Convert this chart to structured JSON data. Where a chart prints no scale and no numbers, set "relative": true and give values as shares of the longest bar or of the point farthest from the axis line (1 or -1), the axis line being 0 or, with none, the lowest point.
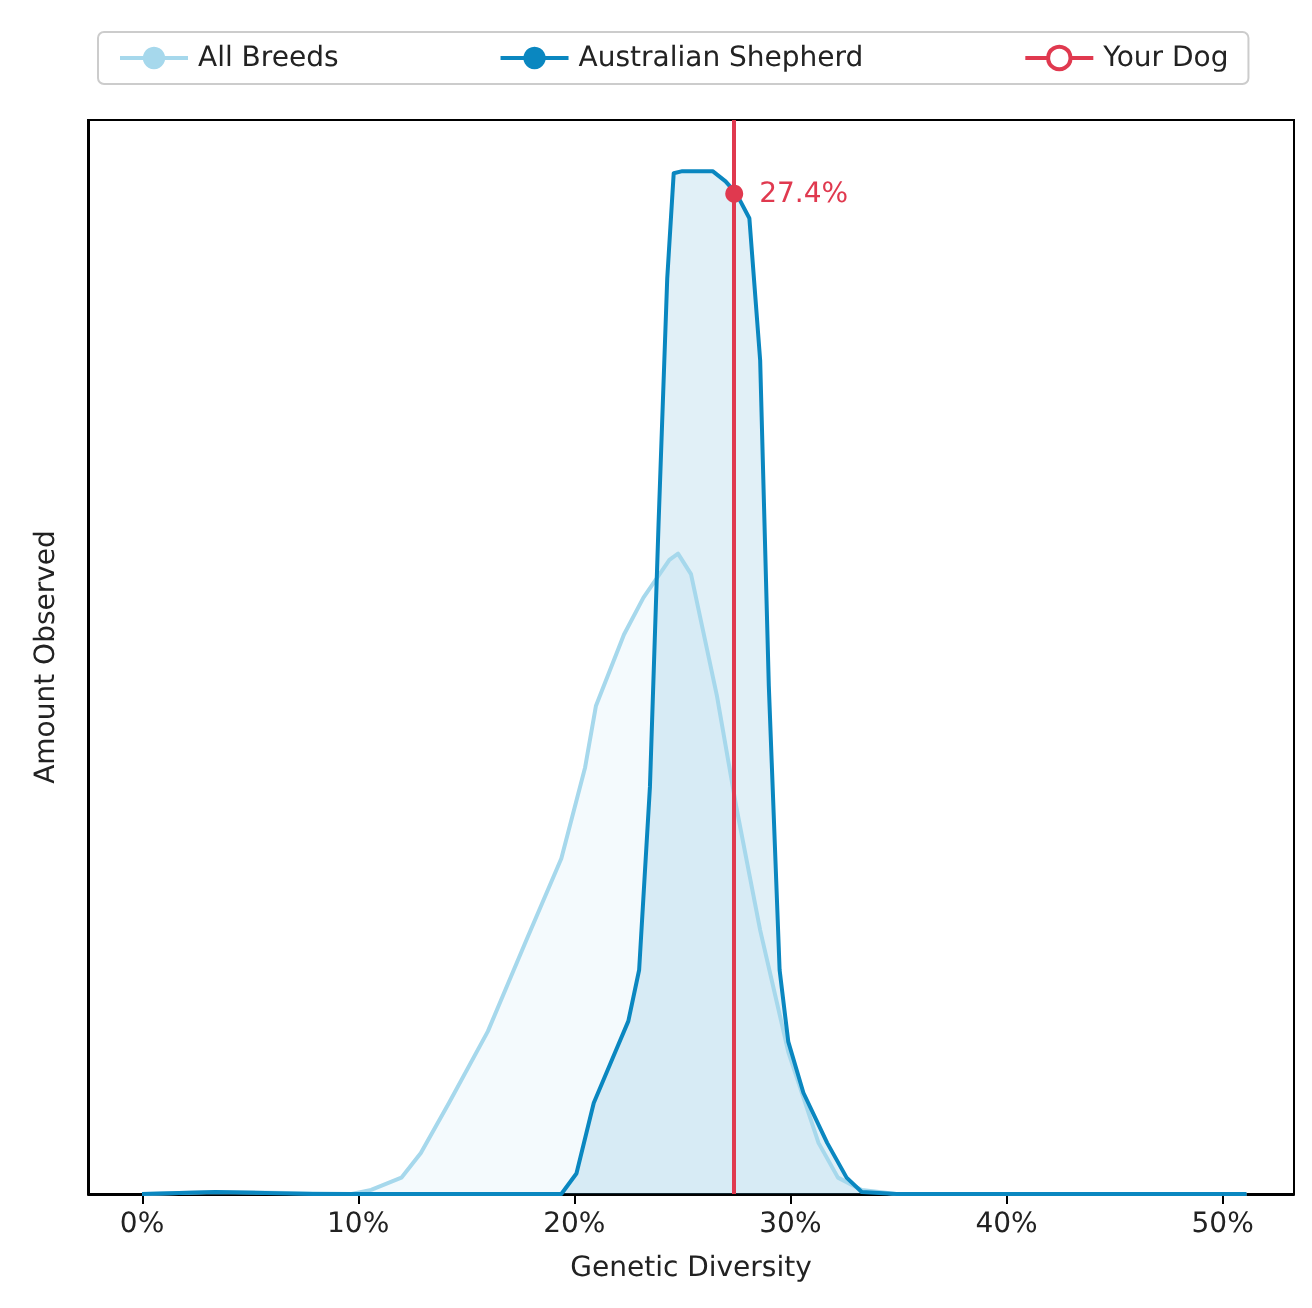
{
  "chart_data": {
    "type": "area",
    "relative": true,
    "xlabel": "Genetic Diversity",
    "ylabel": "Amount Observed",
    "xlim": [
      -2.5,
      53.3
    ],
    "xticks": [
      {
        "value": 0,
        "label": "0%"
      },
      {
        "value": 10,
        "label": "10%"
      },
      {
        "value": 20,
        "label": "20%"
      },
      {
        "value": 30,
        "label": "30%"
      },
      {
        "value": 40,
        "label": "40%"
      },
      {
        "value": 50,
        "label": "50%"
      }
    ],
    "grid": false,
    "legend": "top",
    "series": [
      {
        "name": "All Breeds",
        "color": "#a6d8ec",
        "x": [
          0,
          3.4,
          9.7,
          10.6,
          12,
          12.9,
          14.2,
          16,
          17.8,
          19.4,
          20.5,
          21,
          22.3,
          23.2,
          24.4,
          24.8,
          25.4,
          26.6,
          27.5,
          28.6,
          29.9,
          31.3,
          32.2,
          33.3,
          34.9,
          50,
          51.1
        ],
        "values": [
          0,
          0.002,
          0,
          0.004,
          0.016,
          0.04,
          0.089,
          0.159,
          0.249,
          0.328,
          0.417,
          0.477,
          0.547,
          0.583,
          0.62,
          0.626,
          0.606,
          0.487,
          0.378,
          0.258,
          0.139,
          0.05,
          0.016,
          0.004,
          0,
          0,
          0
        ]
      },
      {
        "name": "Australian Shepherd",
        "color": "#0a87c0",
        "x": [
          0,
          3.4,
          7.9,
          19.4,
          20.1,
          20.9,
          21.9,
          22.5,
          23,
          23.5,
          23.9,
          24.3,
          24.6,
          25,
          26.4,
          27,
          27.5,
          28.1,
          28.6,
          29,
          29.5,
          29.9,
          30.6,
          31.7,
          32.6,
          33.3,
          34.9,
          51.1
        ],
        "values": [
          0,
          0.002,
          0,
          0,
          0.02,
          0.089,
          0.139,
          0.169,
          0.219,
          0.398,
          0.656,
          0.895,
          0.998,
          1,
          1,
          0.99,
          0.978,
          0.954,
          0.815,
          0.497,
          0.219,
          0.149,
          0.099,
          0.05,
          0.016,
          0.002,
          0,
          0
        ]
      }
    ],
    "ref_lines": [
      {
        "axis": "x",
        "value": 27.4,
        "label": "Your Dog",
        "color": "#e0394f"
      }
    ],
    "annotations": [
      {
        "text": "27.4%",
        "x": 27.4,
        "y": 0.978
      }
    ]
  }
}
